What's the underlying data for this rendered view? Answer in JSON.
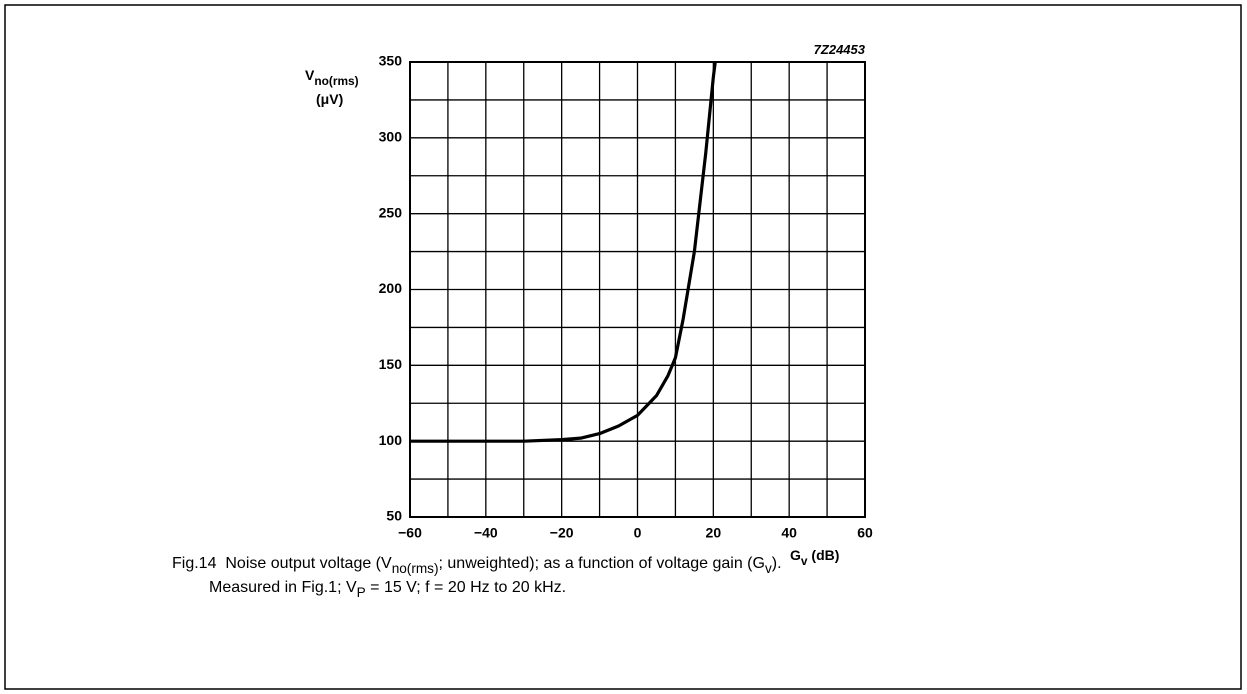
{
  "chart_data": {
    "type": "line",
    "annotation": "7Z24453",
    "y_label": [
      [
        {
          "text": "V"
        },
        {
          "text": "no(rms)",
          "sub": true
        }
      ],
      [
        {
          "text": "(μV)"
        }
      ]
    ],
    "x_label": [
      [
        {
          "text": "G"
        },
        {
          "text": "v",
          "sub": true
        },
        {
          "text": " (dB)"
        }
      ]
    ],
    "caption": [
      [
        {
          "text": "Fig.14  Noise output voltage (V"
        },
        {
          "text": "no(rms)",
          "sub": true
        },
        {
          "text": "; unweighted); as a function of voltage gain (G"
        },
        {
          "text": "v",
          "sub": true
        },
        {
          "text": ")."
        }
      ],
      [
        {
          "text": "Measured in Fig.1; V"
        },
        {
          "text": "P",
          "sub": true
        },
        {
          "text": " = 15 V; f = 20 Hz to 20 kHz."
        }
      ]
    ],
    "x": [
      -60,
      -30,
      -20,
      -15,
      -10,
      -5,
      0,
      5,
      8,
      10,
      12,
      15,
      18,
      20,
      20.5
    ],
    "series": [
      {
        "name": "Vno(rms)",
        "color": "#000000",
        "values": [
          100,
          100,
          101,
          102,
          105,
          110,
          117,
          130,
          143,
          155,
          180,
          225,
          290,
          340,
          350
        ]
      }
    ],
    "xlim": [
      -60,
      60
    ],
    "ylim": [
      50,
      350
    ],
    "xticks": [
      -60,
      -40,
      -20,
      0,
      20,
      40,
      60
    ],
    "yticks": [
      50,
      100,
      150,
      200,
      250,
      300,
      350
    ],
    "xgrid": [
      -60,
      -50,
      -40,
      -30,
      -20,
      -10,
      0,
      10,
      20,
      30,
      40,
      50,
      60
    ],
    "ygrid": [
      50,
      75,
      100,
      125,
      150,
      175,
      200,
      225,
      250,
      275,
      300,
      325,
      350
    ],
    "grid": true
  }
}
